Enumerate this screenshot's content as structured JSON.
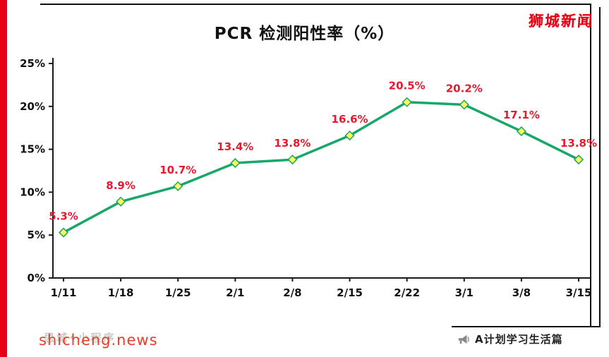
{
  "header": {
    "brand": "狮城新闻"
  },
  "chart_data": {
    "type": "line",
    "title": "PCR 检测阳性率（%）",
    "x": [
      "1/11",
      "1/18",
      "1/25",
      "2/1",
      "2/8",
      "2/15",
      "2/22",
      "3/1",
      "3/8",
      "3/15"
    ],
    "values": [
      5.3,
      8.9,
      10.7,
      13.4,
      13.8,
      16.6,
      20.5,
      20.2,
      17.1,
      13.8
    ],
    "labels": [
      "5.3%",
      "8.9%",
      "10.7%",
      "13.4%",
      "13.8%",
      "16.6%",
      "20.5%",
      "20.2%",
      "17.1%",
      "13.8%"
    ],
    "ylim": [
      0,
      25
    ],
    "yticks": [
      "0%",
      "5%",
      "10%",
      "15%",
      "20%",
      "25%"
    ],
    "xlabel": "",
    "ylabel": "",
    "grid": false,
    "legend": "none",
    "line_color": "#17A768",
    "marker_fill": "#FFF75C",
    "label_color": "#E8192C",
    "axis_color": "#1a1a1a"
  },
  "footer": {
    "watermark_faint": "思城•小程序",
    "site": "shicheng.news",
    "channel": "A计划学习生活篇"
  },
  "colors": {
    "accent_red": "#E60012",
    "frame_black": "#111111"
  }
}
